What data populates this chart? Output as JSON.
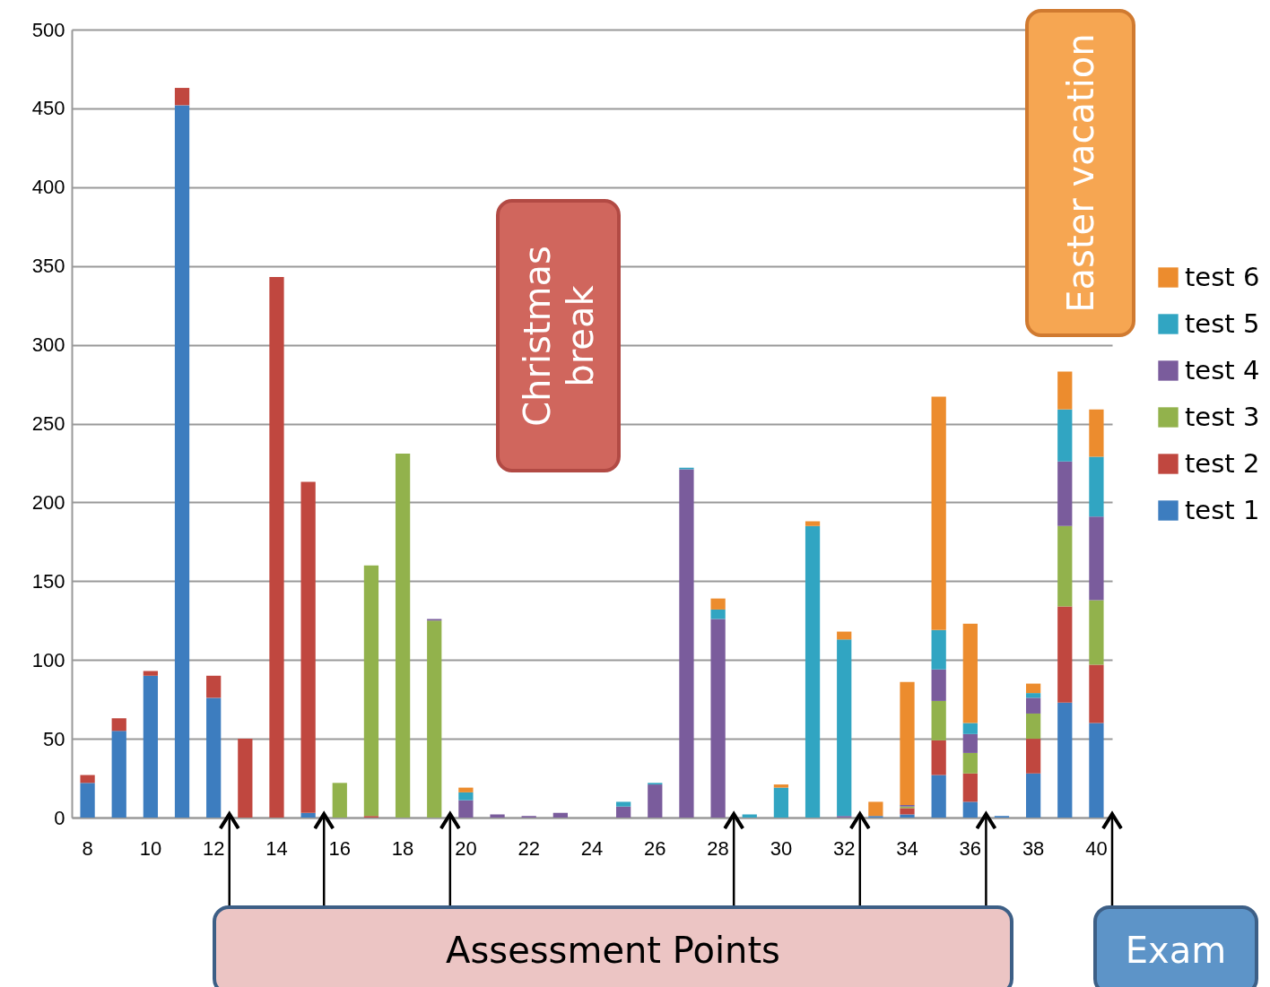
{
  "chart_data": {
    "type": "bar",
    "stacked": true,
    "categories": [
      "8",
      null,
      "10",
      null,
      "12",
      null,
      "14",
      null,
      "16",
      null,
      "18",
      null,
      "20",
      null,
      "22",
      null,
      "24",
      null,
      "26",
      null,
      "28",
      null,
      "30",
      null,
      "32",
      null,
      "34",
      null,
      "36",
      null,
      "38",
      null,
      "40"
    ],
    "series": [
      {
        "name": "test 1",
        "color": "#3d7dbf",
        "values": [
          22,
          55,
          90,
          452,
          76,
          0,
          0,
          3,
          0,
          0,
          0,
          0,
          0,
          0,
          0,
          0,
          0,
          0,
          0,
          0,
          0,
          0,
          0,
          0,
          0,
          1,
          2,
          27,
          10,
          1,
          28,
          73,
          60
        ]
      },
      {
        "name": "test 2",
        "color": "#c0473f",
        "values": [
          5,
          8,
          3,
          11,
          14,
          50,
          343,
          210,
          0,
          1,
          0,
          0,
          0,
          0,
          0,
          0,
          0,
          0,
          0,
          0,
          0,
          0,
          0,
          0,
          0,
          0,
          4,
          22,
          18,
          0,
          22,
          61,
          37
        ]
      },
      {
        "name": "test 3",
        "color": "#92b24c",
        "values": [
          0,
          0,
          0,
          0,
          0,
          0,
          0,
          0,
          22,
          159,
          231,
          125,
          0,
          0,
          0,
          0,
          0,
          0,
          0,
          0,
          0,
          0,
          0,
          0,
          0,
          0,
          1,
          25,
          13,
          0,
          16,
          51,
          41
        ]
      },
      {
        "name": "test 4",
        "color": "#7a5c9c",
        "values": [
          0,
          0,
          0,
          0,
          0,
          0,
          0,
          0,
          0,
          0,
          0,
          1,
          11,
          2,
          1,
          3,
          0,
          7,
          21,
          221,
          126,
          0,
          0,
          0,
          1,
          0,
          1,
          20,
          12,
          0,
          10,
          41,
          53
        ]
      },
      {
        "name": "test 5",
        "color": "#31a5c2",
        "values": [
          0,
          0,
          0,
          0,
          0,
          0,
          0,
          0,
          0,
          0,
          0,
          0,
          5,
          0,
          0,
          0,
          0,
          3,
          1,
          1,
          6,
          2,
          19,
          185,
          112,
          0,
          0,
          25,
          7,
          0,
          3,
          33,
          38
        ]
      },
      {
        "name": "test 6",
        "color": "#ec8c2e",
        "values": [
          0,
          0,
          0,
          0,
          0,
          0,
          0,
          0,
          0,
          0,
          0,
          0,
          3,
          0,
          0,
          0,
          0,
          0,
          0,
          0,
          7,
          0,
          2,
          3,
          5,
          9,
          78,
          148,
          63,
          0,
          6,
          24,
          30
        ]
      }
    ],
    "ylim": [
      0,
      500
    ],
    "yticks": [
      0,
      50,
      100,
      150,
      200,
      250,
      300,
      350,
      400,
      450,
      500
    ],
    "grid": "y",
    "legend": "right",
    "annotations": [
      "Christmas break",
      "Easter vacation",
      "Assessment Points",
      "Exam"
    ]
  }
}
